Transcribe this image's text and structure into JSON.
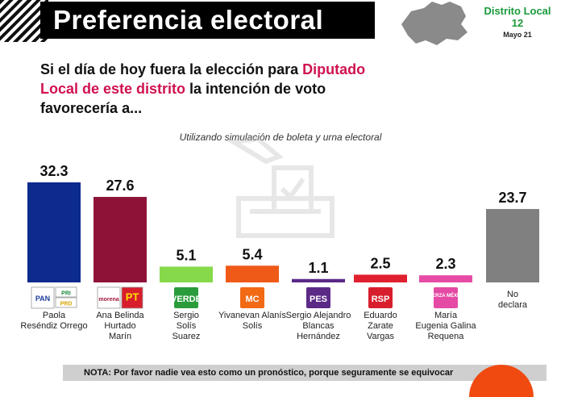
{
  "header": {
    "title": "Preferencia electoral"
  },
  "district": {
    "name": "Distrito Local",
    "number": "12",
    "date": "Mayo 21"
  },
  "question": {
    "part1": "Si el día de hoy fuera la elección para ",
    "highlight": "Diputado Local de este distrito",
    "part2": " la intención de voto favorecería a..."
  },
  "subtitle": "Utilizando simulación de boleta y urna electoral",
  "footer": {
    "note": "NOTA: Por favor nadie vea esto como un pronóstico, porque seguramente se equivocar"
  },
  "colors": {
    "highlight": "#d0124f",
    "district_green": "#1a9a3a",
    "footer_bg": "#cfcfcf",
    "accent_orange": "#f04a10"
  },
  "chart_data": {
    "type": "bar",
    "title": "",
    "xlabel": "",
    "ylabel": "",
    "ylim": [
      0,
      32.3
    ],
    "categories": [
      "Paola Reséndiz Orrego",
      "Ana Belinda Hurtado Marín",
      "Sergio Solís Suarez",
      "Yivanevan Alanís Solís",
      "Sergio Alejandro Blancas Hernández",
      "Eduardo Zarate Vargas",
      "María Eugenia Galina Requena",
      "No declara"
    ],
    "label_lines": [
      [
        "Paola",
        "Reséndiz Orrego"
      ],
      [
        "Ana Belinda",
        "Hurtado",
        "Marín"
      ],
      [
        "Sergio",
        "Solís",
        "Suarez"
      ],
      [
        "Yivanevan Alanís",
        "Solís"
      ],
      [
        "Sergio Alejandro",
        "Blancas",
        "Hernández"
      ],
      [
        "Eduardo",
        "Zarate",
        "Vargas"
      ],
      [
        "María",
        "Eugenia Galina",
        "Requena"
      ],
      [
        "No",
        "declara"
      ]
    ],
    "values": [
      32.3,
      27.6,
      5.1,
      5.4,
      1.1,
      2.5,
      2.3,
      23.7
    ],
    "value_labels": [
      "32.3",
      "27.6",
      "5.1",
      "5.4",
      "1.1",
      "2.5",
      "2.3",
      "23.7"
    ],
    "colors": [
      "#0d2a8e",
      "#8e1238",
      "#86d94a",
      "#f05a18",
      "#5a2a86",
      "#e0202e",
      "#e64ca6",
      "#808080"
    ],
    "logos": [
      {
        "party": "PAN",
        "extras": [
          "PRI",
          "PRD"
        ],
        "bg": "#ffffff",
        "fg": "#1d3f9a"
      },
      {
        "party": "morena",
        "extras": [
          "PT"
        ],
        "bg": "#ffffff",
        "fg": "#a0183a"
      },
      {
        "party": "VERDE",
        "extras": [],
        "bg": "#2a9c3c",
        "fg": "#ffffff"
      },
      {
        "party": "MC",
        "extras": [],
        "bg": "#f26a14",
        "fg": "#ffffff"
      },
      {
        "party": "PES",
        "extras": [],
        "bg": "#5b2a86",
        "fg": "#ffffff"
      },
      {
        "party": "RSP",
        "extras": [],
        "bg": "#d81e2c",
        "fg": "#ffffff"
      },
      {
        "party": "FUERZA MÉXICO",
        "extras": [],
        "bg": "#e54aa4",
        "fg": "#ffffff"
      },
      {
        "party": "",
        "extras": [],
        "bg": "",
        "fg": ""
      }
    ]
  }
}
